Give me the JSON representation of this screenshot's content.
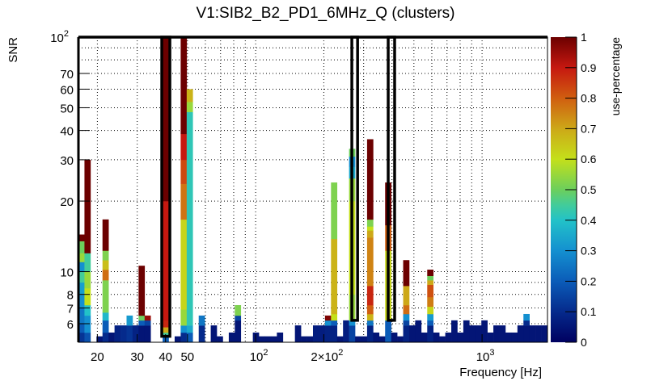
{
  "chart_data": {
    "type": "heatmap",
    "title": "V1:SIB2_B2_PD1_6MHz_Q (clusters)",
    "xlabel": "Frequency [Hz]",
    "ylabel": "SNR",
    "zlabel": "use-percentage",
    "xscale": "log",
    "yscale": "log",
    "xlim": [
      16.5,
      1945
    ],
    "ylim": [
      5,
      100
    ],
    "zlim": [
      0,
      1
    ],
    "grid": true,
    "n_bins_x": 78,
    "x_ticks": [
      {
        "v": 20,
        "label": "20"
      },
      {
        "v": 30,
        "label": "30"
      },
      {
        "v": 40,
        "label": "40"
      },
      {
        "v": 50,
        "label": "50"
      },
      {
        "v": 100,
        "label": "10",
        "sup": "2"
      },
      {
        "v": 200,
        "label": "2×10",
        "sup": "2"
      },
      {
        "v": 1000,
        "label": "10",
        "sup": "3"
      }
    ],
    "x_grid": [
      20,
      30,
      40,
      50,
      60,
      70,
      80,
      90,
      100,
      200,
      300,
      400,
      500,
      600,
      700,
      800,
      900,
      1000
    ],
    "y_ticks": [
      {
        "v": 6,
        "label": "6"
      },
      {
        "v": 7,
        "label": "7"
      },
      {
        "v": 8,
        "label": "8"
      },
      {
        "v": 10,
        "label": "10"
      },
      {
        "v": 20,
        "label": "20"
      },
      {
        "v": 30,
        "label": "30"
      },
      {
        "v": 40,
        "label": "40"
      },
      {
        "v": 50,
        "label": "50"
      },
      {
        "v": 60,
        "label": "60"
      },
      {
        "v": 70,
        "label": "70"
      },
      {
        "v": 100,
        "label": "10",
        "sup": "2"
      }
    ],
    "y_grid": [
      6,
      7,
      8,
      9,
      10,
      20,
      30,
      40,
      50,
      60,
      70,
      80,
      90
    ],
    "z_ticks": [
      "0",
      "0.1",
      "0.2",
      "0.3",
      "0.4",
      "0.5",
      "0.6",
      "0.7",
      "0.8",
      "0.9",
      "1"
    ],
    "colormap": [
      [
        0,
        "#000060"
      ],
      [
        0.1,
        "#052a8c"
      ],
      [
        0.2,
        "#0b5cb8"
      ],
      [
        0.3,
        "#1490d0"
      ],
      [
        0.4,
        "#22c2c8"
      ],
      [
        0.45,
        "#42cc9a"
      ],
      [
        0.5,
        "#6ccf5c"
      ],
      [
        0.6,
        "#c4e01a"
      ],
      [
        0.7,
        "#cda818"
      ],
      [
        0.8,
        "#d05e10"
      ],
      [
        0.9,
        "#c61810"
      ],
      [
        1,
        "#6c0000"
      ]
    ],
    "boxes": [
      {
        "f": [
          38.5,
          41.8
        ],
        "snr": [
          5.3,
          100
        ]
      },
      {
        "f": [
          266,
          282
        ],
        "snr": [
          6.2,
          100
        ]
      },
      {
        "f": [
          385,
          411
        ],
        "snr": [
          6.2,
          100
        ]
      }
    ],
    "columns": [
      {
        "bin": 0,
        "segments": [
          [
            5.5,
            0.12
          ],
          [
            6,
            0.2
          ],
          [
            7,
            0.25
          ],
          [
            8,
            0.3
          ],
          [
            9,
            0.33
          ],
          [
            10,
            0.45
          ],
          [
            11,
            0.3
          ],
          [
            12,
            0.55
          ],
          [
            13.5,
            0.5
          ],
          [
            14.4,
            1
          ]
        ]
      },
      {
        "bin": 1,
        "segments": [
          [
            5.5,
            0.18
          ],
          [
            6.5,
            0.3
          ],
          [
            7.2,
            0.4
          ],
          [
            8.5,
            0.6
          ],
          [
            10,
            0.55
          ],
          [
            12,
            0.45
          ],
          [
            30,
            1
          ]
        ]
      },
      {
        "bin": 3,
        "segments": [
          [
            5.3,
            0.05
          ]
        ]
      },
      {
        "bin": 4,
        "segments": [
          [
            5.5,
            0.1
          ],
          [
            6.2,
            0.2
          ],
          [
            6.7,
            0.38
          ],
          [
            9.2,
            0.52
          ],
          [
            10.2,
            0.78
          ],
          [
            11.2,
            0.66
          ],
          [
            12.3,
            0.52
          ],
          [
            16.7,
            1
          ]
        ]
      },
      {
        "bin": 5,
        "segments": [
          [
            5.5,
            0.05
          ]
        ]
      },
      {
        "bin": 6,
        "segments": [
          [
            5.9,
            0.08
          ]
        ]
      },
      {
        "bin": 7,
        "segments": [
          [
            5.9,
            0.1
          ]
        ]
      },
      {
        "bin": 8,
        "segments": [
          [
            5.9,
            0.12
          ],
          [
            6.5,
            0.32
          ]
        ]
      },
      {
        "bin": 9,
        "segments": [
          [
            5.9,
            0.08
          ]
        ]
      },
      {
        "bin": 10,
        "segments": [
          [
            5.9,
            0.05
          ],
          [
            6.2,
            0.2
          ],
          [
            6.5,
            0.5
          ],
          [
            10.6,
            1
          ]
        ]
      },
      {
        "bin": 11,
        "segments": [
          [
            5.9,
            0.05
          ],
          [
            6.2,
            0.15
          ],
          [
            6.5,
            0.95
          ]
        ]
      },
      {
        "bin": 14,
        "segments": [
          [
            5.3,
            0.2
          ],
          [
            5.5,
            0.45
          ],
          [
            5.8,
            0.7
          ],
          [
            6.2,
            0.88
          ],
          [
            20,
            0.9
          ],
          [
            100,
            1
          ]
        ]
      },
      {
        "bin": 16,
        "segments": [
          [
            5.3,
            0.05
          ]
        ]
      },
      {
        "bin": 17,
        "segments": [
          [
            5.5,
            0.1
          ],
          [
            5.9,
            0.3
          ],
          [
            6.9,
            0.55
          ],
          [
            16.7,
            0.62
          ],
          [
            23.7,
            0.77
          ],
          [
            30,
            0.83
          ],
          [
            38.7,
            0.9
          ],
          [
            100,
            1
          ]
        ]
      },
      {
        "bin": 18,
        "segments": [
          [
            5.5,
            0.2
          ],
          [
            5.9,
            0.35
          ],
          [
            48,
            0.42
          ],
          [
            53,
            0.55
          ],
          [
            60,
            0.68
          ]
        ]
      },
      {
        "bin": 20,
        "segments": [
          [
            5.9,
            0.1
          ],
          [
            6.5,
            0.25
          ]
        ]
      },
      {
        "bin": 22,
        "segments": [
          [
            5.9,
            0.05
          ]
        ]
      },
      {
        "bin": 23,
        "segments": [
          [
            5.3,
            0.05
          ]
        ]
      },
      {
        "bin": 25,
        "segments": [
          [
            5.5,
            0.05
          ]
        ]
      },
      {
        "bin": 26,
        "segments": [
          [
            6.2,
            0.05
          ],
          [
            6.5,
            0.15
          ],
          [
            7.2,
            0.52
          ]
        ]
      },
      {
        "bin": 29,
        "segments": [
          [
            5.5,
            0.05
          ]
        ]
      },
      {
        "bin": 30,
        "segments": [
          [
            5.3,
            0.05
          ]
        ]
      },
      {
        "bin": 31,
        "segments": [
          [
            5.3,
            0.05
          ]
        ]
      },
      {
        "bin": 32,
        "segments": [
          [
            5.3,
            0.05
          ]
        ]
      },
      {
        "bin": 33,
        "segments": [
          [
            5.5,
            0.05
          ]
        ]
      },
      {
        "bin": 36,
        "segments": [
          [
            5.9,
            0.05
          ]
        ]
      },
      {
        "bin": 37,
        "segments": [
          [
            5.3,
            0.05
          ]
        ]
      },
      {
        "bin": 38,
        "segments": [
          [
            5.3,
            0.05
          ]
        ]
      },
      {
        "bin": 39,
        "segments": [
          [
            5.9,
            0.07
          ]
        ]
      },
      {
        "bin": 40,
        "segments": [
          [
            5.9,
            0.07
          ]
        ]
      },
      {
        "bin": 41,
        "segments": [
          [
            5.9,
            0.08
          ],
          [
            6.2,
            0.3
          ],
          [
            6.5,
            0.98
          ]
        ]
      },
      {
        "bin": 42,
        "segments": [
          [
            5.9,
            0.08
          ],
          [
            6.2,
            0.2
          ],
          [
            6.6,
            0.6
          ],
          [
            13.8,
            0.68
          ],
          [
            24,
            0.52
          ]
        ]
      },
      {
        "bin": 43,
        "segments": [
          [
            5.3,
            0.05
          ]
        ]
      },
      {
        "bin": 44,
        "segments": [
          [
            6.2,
            0.07
          ]
        ]
      },
      {
        "bin": 45,
        "segments": [
          [
            5.9,
            0.15
          ],
          [
            6.2,
            0.3
          ],
          [
            8,
            0.55
          ],
          [
            20,
            0.6
          ],
          [
            25,
            0.55
          ],
          [
            28,
            0.35
          ],
          [
            31,
            0.3
          ],
          [
            33.4,
            0.5
          ]
        ]
      },
      {
        "bin": 46,
        "segments": [
          [
            5.3,
            0.05
          ]
        ]
      },
      {
        "bin": 47,
        "segments": [
          [
            5.3,
            0.05
          ]
        ]
      },
      {
        "bin": 48,
        "segments": [
          [
            5.9,
            0.08
          ],
          [
            6.2,
            0.25
          ],
          [
            6.6,
            0.68
          ],
          [
            7.2,
            0.8
          ],
          [
            8.7,
            0.88
          ],
          [
            14,
            0.75
          ],
          [
            15,
            0.7
          ],
          [
            15.6,
            0.6
          ],
          [
            16.7,
            0.52
          ],
          [
            36.7,
            1
          ]
        ]
      },
      {
        "bin": 49,
        "segments": [
          [
            5.5,
            0.05
          ]
        ]
      },
      {
        "bin": 50,
        "segments": [
          [
            5.3,
            0.05
          ]
        ]
      },
      {
        "bin": 51,
        "segments": [
          [
            6.2,
            0.2
          ],
          [
            12.3,
            0.62
          ],
          [
            15.8,
            0.8
          ],
          [
            24,
            1
          ]
        ]
      },
      {
        "bin": 52,
        "segments": [
          [
            5.5,
            0.05
          ]
        ]
      },
      {
        "bin": 53,
        "segments": [
          [
            5.3,
            0.05
          ]
        ]
      },
      {
        "bin": 54,
        "segments": [
          [
            5.9,
            0.08
          ],
          [
            6.2,
            0.15
          ],
          [
            6.6,
            0.3
          ],
          [
            7.2,
            0.78
          ],
          [
            8.7,
            0.7
          ],
          [
            11.2,
            1
          ]
        ]
      },
      {
        "bin": 55,
        "segments": [
          [
            5.9,
            0.05
          ]
        ]
      },
      {
        "bin": 56,
        "segments": [
          [
            6.2,
            0.05
          ]
        ]
      },
      {
        "bin": 57,
        "segments": [
          [
            5.5,
            0.05
          ]
        ]
      },
      {
        "bin": 58,
        "segments": [
          [
            5.9,
            0.08
          ],
          [
            6.2,
            0.2
          ],
          [
            6.6,
            0.32
          ],
          [
            7.1,
            0.62
          ],
          [
            7.8,
            0.76
          ],
          [
            8.8,
            0.82
          ],
          [
            9.2,
            0.7
          ],
          [
            9.6,
            0.5
          ],
          [
            10.2,
            1
          ]
        ]
      },
      {
        "bin": 59,
        "segments": [
          [
            5.5,
            0.05
          ]
        ]
      },
      {
        "bin": 60,
        "segments": [
          [
            5.3,
            0.05
          ]
        ]
      },
      {
        "bin": 61,
        "segments": [
          [
            5.5,
            0.05
          ]
        ]
      },
      {
        "bin": 62,
        "segments": [
          [
            6.2,
            0.05
          ]
        ]
      },
      {
        "bin": 63,
        "segments": [
          [
            5.5,
            0.05
          ]
        ]
      },
      {
        "bin": 64,
        "segments": [
          [
            6.2,
            0.05
          ]
        ]
      },
      {
        "bin": 65,
        "segments": [
          [
            5.9,
            0.05
          ]
        ]
      },
      {
        "bin": 66,
        "segments": [
          [
            5.9,
            0.05
          ]
        ]
      },
      {
        "bin": 67,
        "segments": [
          [
            6.2,
            0.05
          ]
        ]
      },
      {
        "bin": 68,
        "segments": [
          [
            5.5,
            0.05
          ]
        ]
      },
      {
        "bin": 69,
        "segments": [
          [
            5.9,
            0.05
          ]
        ]
      },
      {
        "bin": 70,
        "segments": [
          [
            5.9,
            0.05
          ]
        ]
      },
      {
        "bin": 71,
        "segments": [
          [
            5.5,
            0.05
          ]
        ]
      },
      {
        "bin": 72,
        "segments": [
          [
            5.5,
            0.05
          ]
        ]
      },
      {
        "bin": 73,
        "segments": [
          [
            5.9,
            0.05
          ]
        ]
      },
      {
        "bin": 74,
        "segments": [
          [
            5.9,
            0.05
          ],
          [
            6.2,
            0.1
          ],
          [
            6.6,
            0.3
          ]
        ]
      },
      {
        "bin": 75,
        "segments": [
          [
            5.9,
            0.05
          ]
        ]
      },
      {
        "bin": 76,
        "segments": [
          [
            5.9,
            0.05
          ]
        ]
      },
      {
        "bin": 77,
        "segments": [
          [
            5.9,
            0.05
          ]
        ]
      }
    ]
  }
}
